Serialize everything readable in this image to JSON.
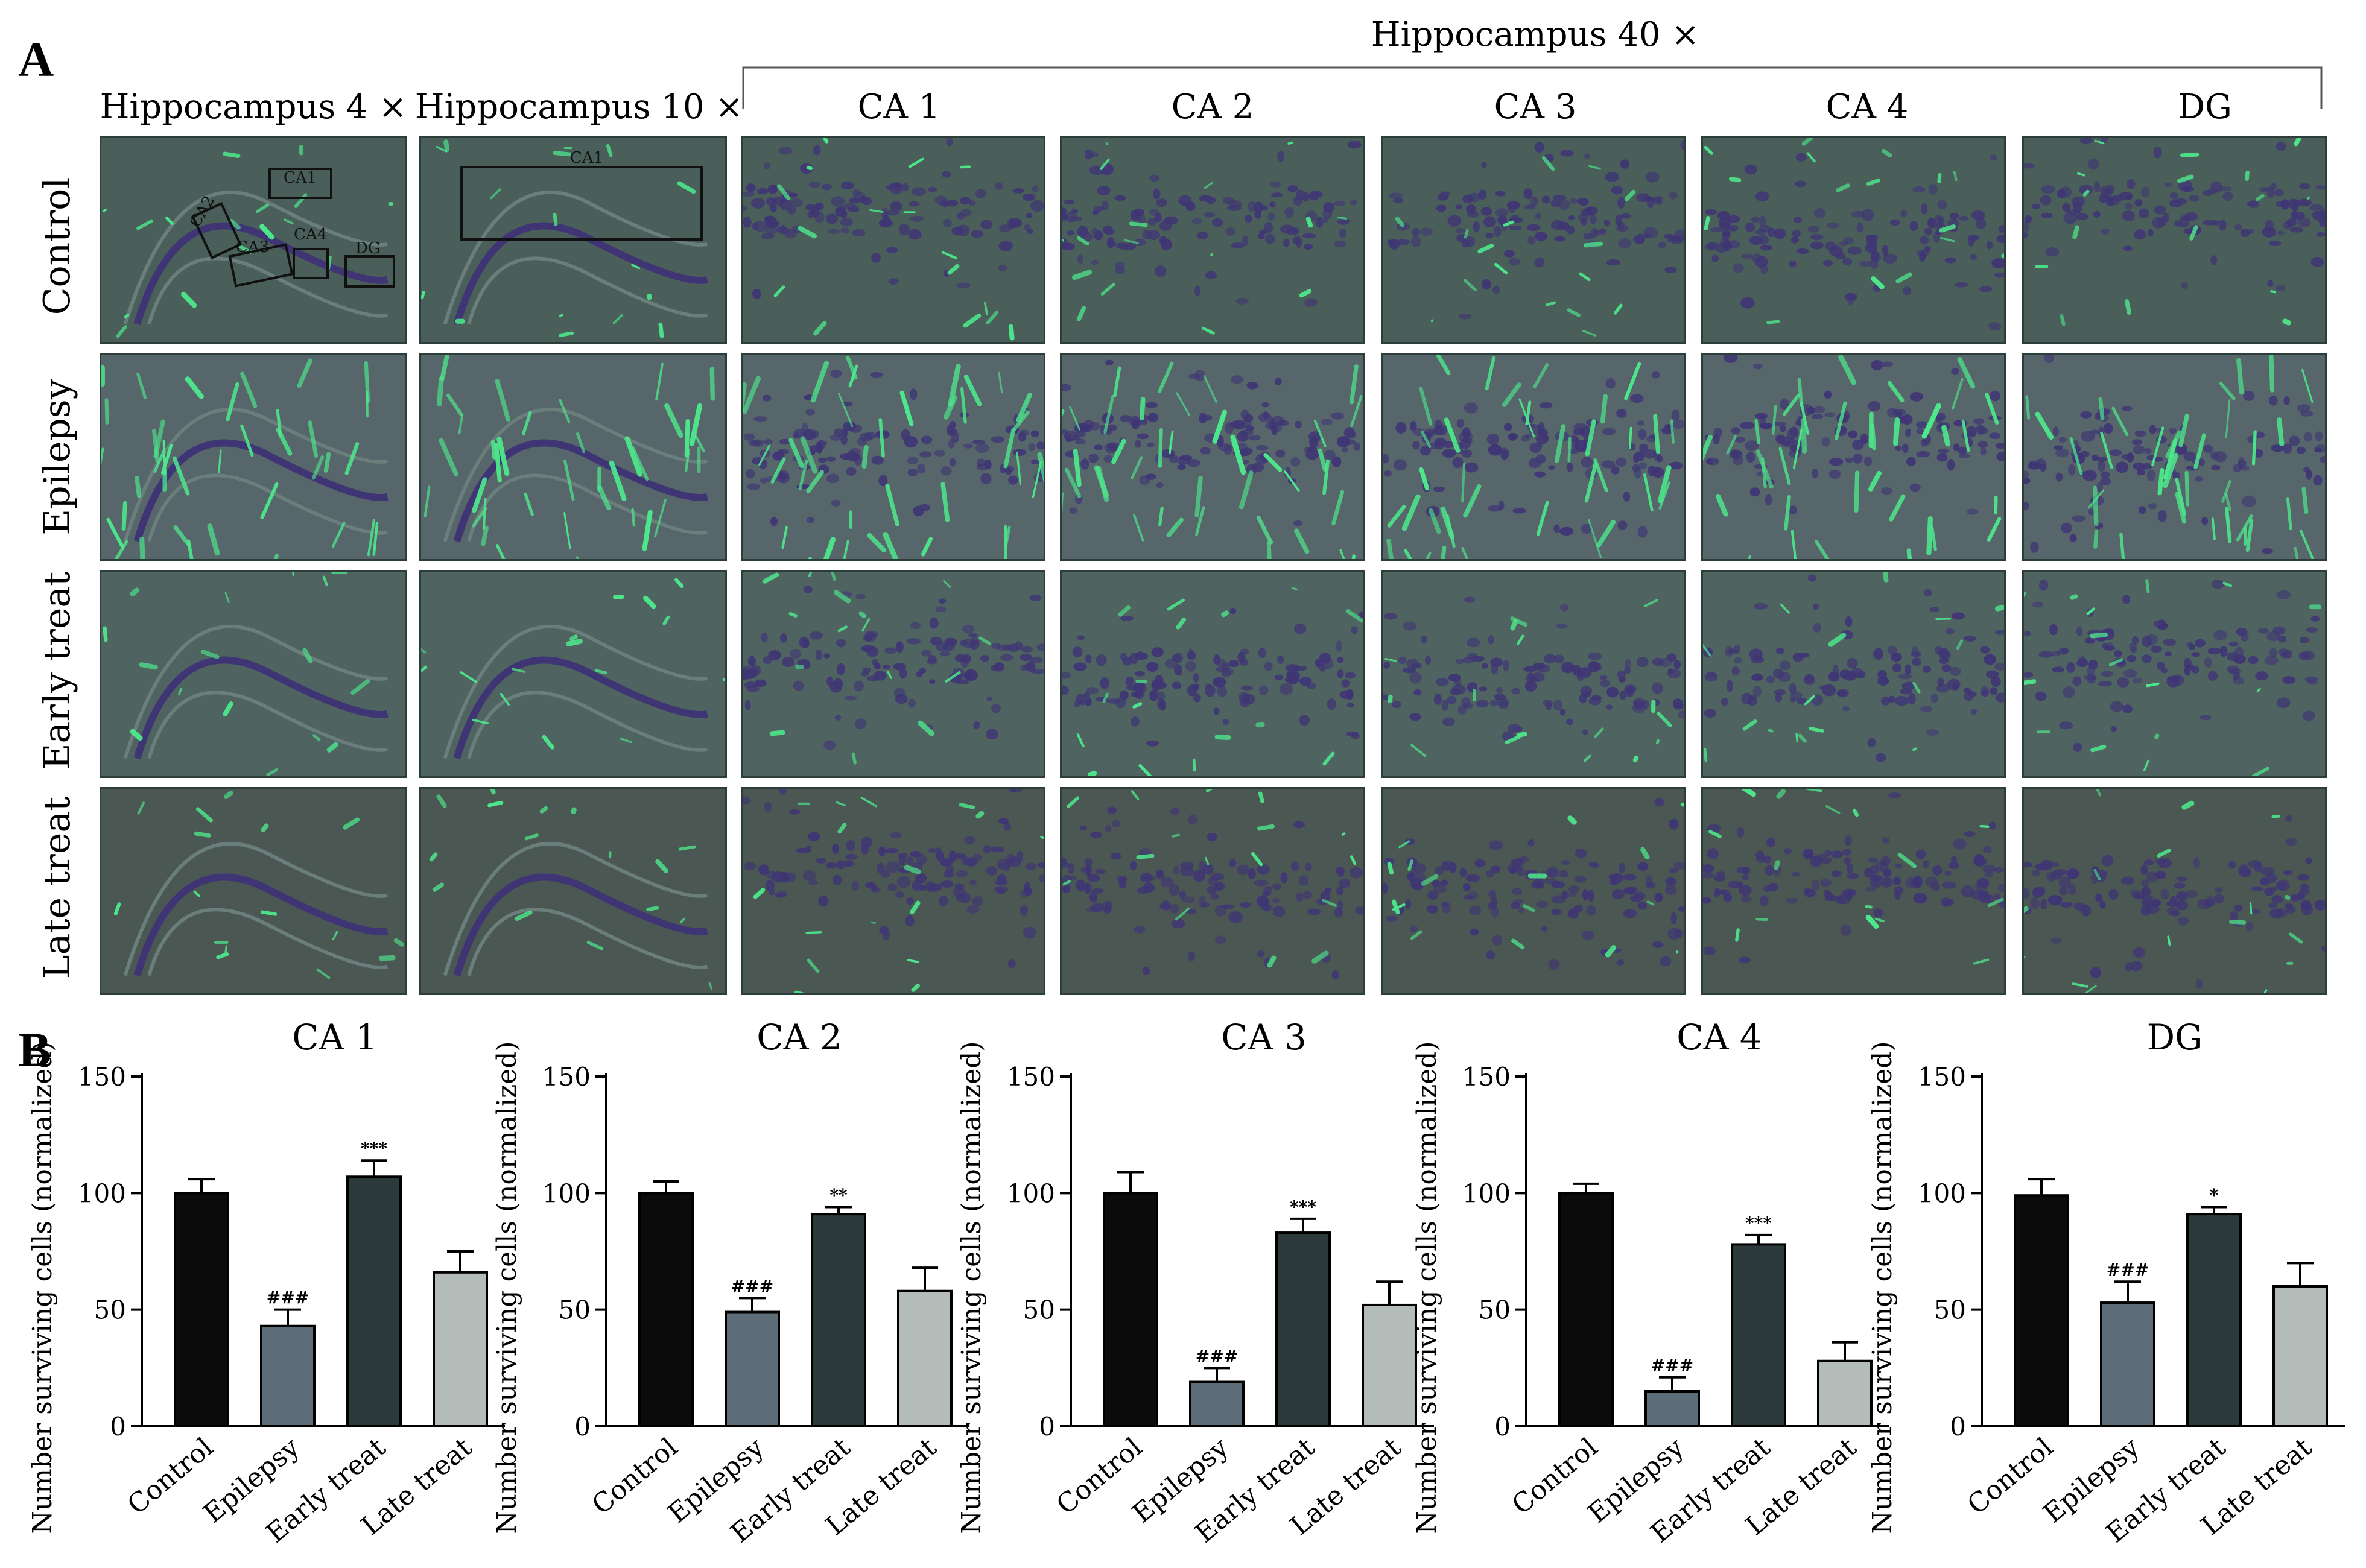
{
  "figure": {
    "panel_a_letter": "A",
    "panel_b_letter": "B",
    "group_header": "Hippocampus 40 ×",
    "column_headers": [
      "Hippocampus 4 ×",
      "Hippocampus 10 ×",
      "CA 1",
      "CA 2",
      "CA 3",
      "CA 4",
      "DG"
    ],
    "row_labels": [
      "Control",
      "Epilepsy",
      "Early treat",
      "Late treat"
    ],
    "overview_region_labels": [
      "CA1",
      "CA2",
      "CA3",
      "CA4",
      "DG"
    ],
    "zoom_region_label": "CA1"
  },
  "colors": {
    "tissue_bg": "#4d5f5c",
    "stain_green": "#4de88c",
    "nuclei_purple": "#3f3575",
    "bar_control": "#0b0b0b",
    "bar_epilepsy": "#5e6e78",
    "bar_early": "#2d3a3b",
    "bar_late": "#b3bcb8"
  },
  "chart_data": [
    {
      "type": "bar",
      "title": "CA 1",
      "ylabel": "Number surviving cells (normalized)",
      "ylim": [
        0,
        150
      ],
      "yticks": [
        0,
        50,
        100,
        150
      ],
      "categories": [
        "Control",
        "Epilepsy",
        "Early treat",
        "Late treat"
      ],
      "values": [
        100,
        43,
        107,
        66
      ],
      "errors": [
        6,
        7,
        7,
        9
      ],
      "annotations": [
        "",
        "###",
        "***",
        ""
      ]
    },
    {
      "type": "bar",
      "title": "CA 2",
      "ylabel": "Number surviving cells (normalized)",
      "ylim": [
        0,
        150
      ],
      "yticks": [
        0,
        50,
        100,
        150
      ],
      "categories": [
        "Control",
        "Epilepsy",
        "Early treat",
        "Late treat"
      ],
      "values": [
        100,
        49,
        91,
        58
      ],
      "errors": [
        5,
        6,
        3,
        10
      ],
      "annotations": [
        "",
        "###",
        "**",
        ""
      ]
    },
    {
      "type": "bar",
      "title": "CA 3",
      "ylabel": "Number surviving cells (normalized)",
      "ylim": [
        0,
        150
      ],
      "yticks": [
        0,
        50,
        100,
        150
      ],
      "categories": [
        "Control",
        "Epilepsy",
        "Early treat",
        "Late treat"
      ],
      "values": [
        100,
        19,
        83,
        52
      ],
      "errors": [
        9,
        6,
        6,
        10
      ],
      "annotations": [
        "",
        "###",
        "***",
        ""
      ]
    },
    {
      "type": "bar",
      "title": "CA 4",
      "ylabel": "Number surviving cells (normalized)",
      "ylim": [
        0,
        150
      ],
      "yticks": [
        0,
        50,
        100,
        150
      ],
      "categories": [
        "Control",
        "Epilepsy",
        "Early treat",
        "Late treat"
      ],
      "values": [
        100,
        15,
        78,
        28
      ],
      "errors": [
        4,
        6,
        4,
        8
      ],
      "annotations": [
        "",
        "###",
        "***",
        ""
      ]
    },
    {
      "type": "bar",
      "title": "DG",
      "ylabel": "Number surviving cells (normalized)",
      "ylim": [
        0,
        150
      ],
      "yticks": [
        0,
        50,
        100,
        150
      ],
      "categories": [
        "Control",
        "Epilepsy",
        "Early treat",
        "Late treat"
      ],
      "values": [
        99,
        53,
        91,
        60
      ],
      "errors": [
        7,
        9,
        3,
        10
      ],
      "annotations": [
        "",
        "###",
        "*",
        ""
      ]
    }
  ]
}
